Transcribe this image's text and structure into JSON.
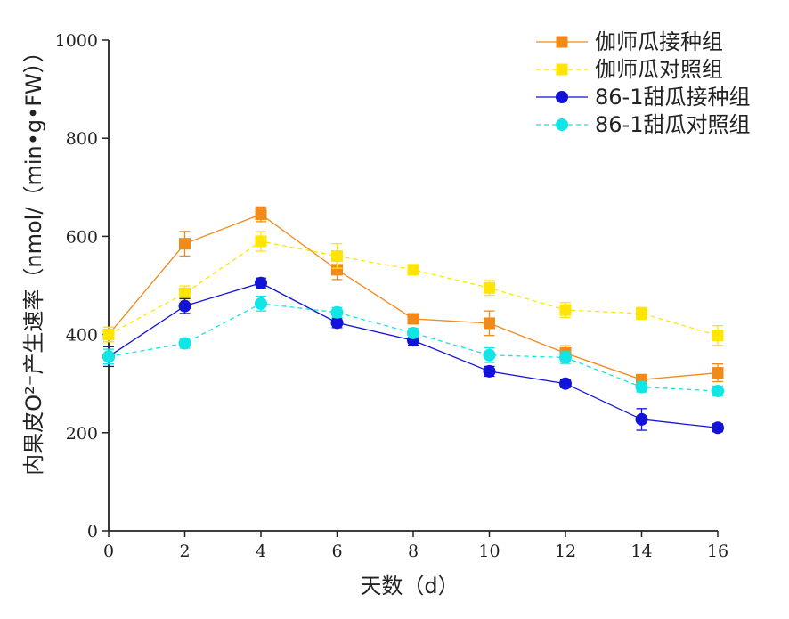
{
  "chart_data": {
    "type": "line",
    "xlabel": "天数（d）",
    "ylabel": "内果皮O²⁻产生速率（nmol/（min•g•FW））",
    "xlim": [
      0,
      16
    ],
    "ylim": [
      0,
      1000
    ],
    "x_ticks": [
      0,
      2,
      4,
      6,
      8,
      10,
      12,
      14,
      16
    ],
    "y_ticks": [
      0,
      200,
      400,
      600,
      800,
      1000
    ],
    "grid": false,
    "legend_position": "top-right",
    "x": [
      0,
      2,
      4,
      6,
      8,
      10,
      12,
      14,
      16
    ],
    "series": [
      {
        "name": "伽师瓜接种组",
        "color": "#F28A1A",
        "marker": "square",
        "line_style": "solid",
        "values": [
          400,
          585,
          645,
          532,
          432,
          423,
          362,
          308,
          322
        ],
        "errors": [
          15,
          25,
          15,
          20,
          10,
          25,
          15,
          10,
          18
        ]
      },
      {
        "name": "伽师瓜对照组",
        "color": "#FFE500",
        "marker": "square",
        "line_style": "dashed",
        "values": [
          400,
          484,
          590,
          560,
          532,
          495,
          450,
          443,
          398
        ],
        "errors": [
          15,
          15,
          20,
          25,
          10,
          15,
          15,
          12,
          20
        ]
      },
      {
        "name": "86-1甜瓜接种组",
        "color": "#1212D8",
        "marker": "circle",
        "line_style": "solid",
        "values": [
          355,
          458,
          505,
          424,
          388,
          325,
          300,
          227,
          210
        ],
        "errors": [
          20,
          15,
          10,
          10,
          10,
          10,
          8,
          22,
          8
        ]
      },
      {
        "name": "86-1甜瓜对照组",
        "color": "#11E5E5",
        "marker": "circle",
        "line_style": "dashed",
        "values": [
          355,
          382,
          463,
          445,
          403,
          358,
          353,
          293,
          285
        ],
        "errors": [
          15,
          10,
          15,
          10,
          10,
          15,
          12,
          10,
          10
        ]
      }
    ]
  }
}
